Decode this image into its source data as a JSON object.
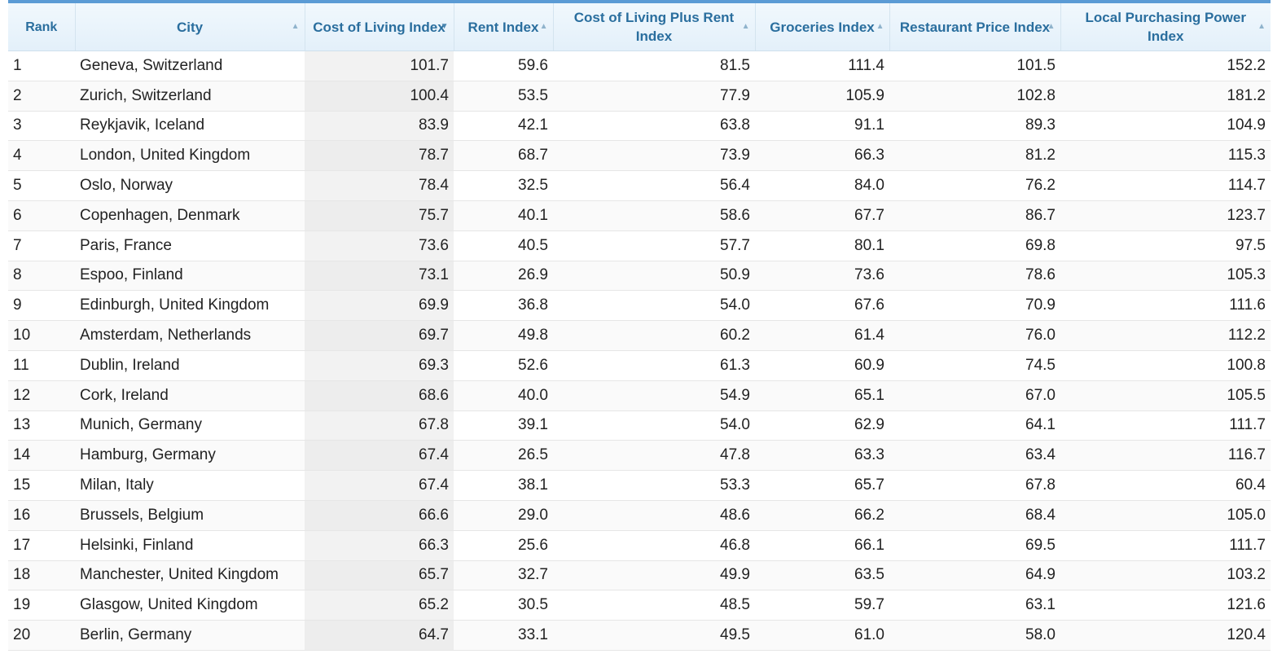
{
  "colors": {
    "header_text": "#2a6e9e",
    "header_bg": "#e3f0fa",
    "accent_bar": "#5b9bd5",
    "sorted_col_bg": "#f2f2f2"
  },
  "table": {
    "headers": {
      "rank": "Rank",
      "city": "City",
      "cost_of_living": "Cost of Living Index",
      "rent": "Rent Index",
      "col_plus_rent": "Cost of Living Plus Rent Index",
      "groceries": "Groceries Index",
      "restaurant": "Restaurant Price Index",
      "purchasing_power": "Local Purchasing Power Index"
    },
    "sort": {
      "column": "cost_of_living",
      "direction": "descending"
    },
    "rows": [
      [
        "1",
        "Geneva, Switzerland",
        "101.7",
        "59.6",
        "81.5",
        "111.4",
        "101.5",
        "152.2"
      ],
      [
        "2",
        "Zurich, Switzerland",
        "100.4",
        "53.5",
        "77.9",
        "105.9",
        "102.8",
        "181.2"
      ],
      [
        "3",
        "Reykjavik, Iceland",
        "83.9",
        "42.1",
        "63.8",
        "91.1",
        "89.3",
        "104.9"
      ],
      [
        "4",
        "London, United Kingdom",
        "78.7",
        "68.7",
        "73.9",
        "66.3",
        "81.2",
        "115.3"
      ],
      [
        "5",
        "Oslo, Norway",
        "78.4",
        "32.5",
        "56.4",
        "84.0",
        "76.2",
        "114.7"
      ],
      [
        "6",
        "Copenhagen, Denmark",
        "75.7",
        "40.1",
        "58.6",
        "67.7",
        "86.7",
        "123.7"
      ],
      [
        "7",
        "Paris, France",
        "73.6",
        "40.5",
        "57.7",
        "80.1",
        "69.8",
        "97.5"
      ],
      [
        "8",
        "Espoo, Finland",
        "73.1",
        "26.9",
        "50.9",
        "73.6",
        "78.6",
        "105.3"
      ],
      [
        "9",
        "Edinburgh, United Kingdom",
        "69.9",
        "36.8",
        "54.0",
        "67.6",
        "70.9",
        "111.6"
      ],
      [
        "10",
        "Amsterdam, Netherlands",
        "69.7",
        "49.8",
        "60.2",
        "61.4",
        "76.0",
        "112.2"
      ],
      [
        "11",
        "Dublin, Ireland",
        "69.3",
        "52.6",
        "61.3",
        "60.9",
        "74.5",
        "100.8"
      ],
      [
        "12",
        "Cork, Ireland",
        "68.6",
        "40.0",
        "54.9",
        "65.1",
        "67.0",
        "105.5"
      ],
      [
        "13",
        "Munich, Germany",
        "67.8",
        "39.1",
        "54.0",
        "62.9",
        "64.1",
        "111.7"
      ],
      [
        "14",
        "Hamburg, Germany",
        "67.4",
        "26.5",
        "47.8",
        "63.3",
        "63.4",
        "116.7"
      ],
      [
        "15",
        "Milan, Italy",
        "67.4",
        "38.1",
        "53.3",
        "65.7",
        "67.8",
        "60.4"
      ],
      [
        "16",
        "Brussels, Belgium",
        "66.6",
        "29.0",
        "48.6",
        "66.2",
        "68.4",
        "105.0"
      ],
      [
        "17",
        "Helsinki, Finland",
        "66.3",
        "25.6",
        "46.8",
        "66.1",
        "69.5",
        "111.7"
      ],
      [
        "18",
        "Manchester, United Kingdom",
        "65.7",
        "32.7",
        "49.9",
        "63.5",
        "64.9",
        "103.2"
      ],
      [
        "19",
        "Glasgow, United Kingdom",
        "65.2",
        "30.5",
        "48.5",
        "59.7",
        "63.1",
        "121.6"
      ],
      [
        "20",
        "Berlin, Germany",
        "64.7",
        "33.1",
        "49.5",
        "61.0",
        "58.0",
        "120.4"
      ]
    ]
  }
}
